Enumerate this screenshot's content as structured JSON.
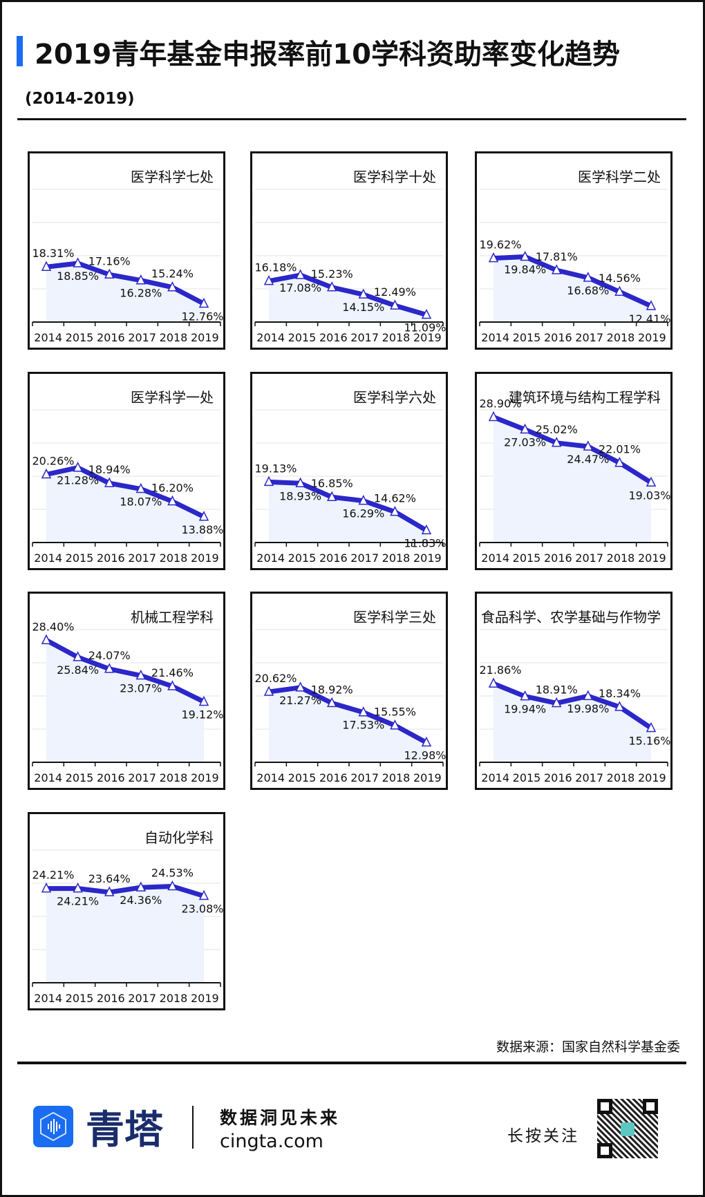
{
  "header": {
    "title": "2019青年基金申报率前10学科资助率变化趋势",
    "subtitle": "(2014-2019)",
    "accent": "#1a6cf0"
  },
  "chart_data": [
    {
      "type": "line",
      "title": "医学科学七处",
      "categories": [
        "2014",
        "2015",
        "2016",
        "2017",
        "2018",
        "2019"
      ],
      "values": [
        18.31,
        18.85,
        17.16,
        16.28,
        15.24,
        12.76
      ],
      "labels": [
        "18.31%",
        "18.85%",
        "17.16%",
        "16.28%",
        "15.24%",
        "12.76%"
      ],
      "ylim": [
        10,
        30
      ],
      "grid": true
    },
    {
      "type": "line",
      "title": "医学科学十处",
      "categories": [
        "2014",
        "2015",
        "2016",
        "2017",
        "2018",
        "2019"
      ],
      "values": [
        16.18,
        17.08,
        15.23,
        14.15,
        12.49,
        11.09
      ],
      "labels": [
        "16.18%",
        "17.08%",
        "15.23%",
        "14.15%",
        "12.49%",
        "11.09%"
      ],
      "ylim": [
        10,
        30
      ],
      "grid": true
    },
    {
      "type": "line",
      "title": "医学科学二处",
      "categories": [
        "2014",
        "2015",
        "2016",
        "2017",
        "2018",
        "2019"
      ],
      "values": [
        19.62,
        19.84,
        17.81,
        16.68,
        14.56,
        12.41
      ],
      "labels": [
        "19.62%",
        "19.84%",
        "17.81%",
        "16.68%",
        "14.56%",
        "12.41%"
      ],
      "ylim": [
        10,
        30
      ],
      "grid": true
    },
    {
      "type": "line",
      "title": "医学科学一处",
      "categories": [
        "2014",
        "2015",
        "2016",
        "2017",
        "2018",
        "2019"
      ],
      "values": [
        20.26,
        21.28,
        18.94,
        18.07,
        16.2,
        13.88
      ],
      "labels": [
        "20.26%",
        "21.28%",
        "18.94%",
        "18.07%",
        "16.20%",
        "13.88%"
      ],
      "ylim": [
        10,
        30
      ],
      "grid": true
    },
    {
      "type": "line",
      "title": "医学科学六处",
      "categories": [
        "2014",
        "2015",
        "2016",
        "2017",
        "2018",
        "2019"
      ],
      "values": [
        19.13,
        18.93,
        16.85,
        16.29,
        14.62,
        11.83
      ],
      "labels": [
        "19.13%",
        "18.93%",
        "16.85%",
        "16.29%",
        "14.62%",
        "11.83%"
      ],
      "ylim": [
        10,
        30
      ],
      "grid": true
    },
    {
      "type": "line",
      "title": "建筑环境与结构工程学科",
      "categories": [
        "2014",
        "2015",
        "2016",
        "2017",
        "2018",
        "2019"
      ],
      "values": [
        28.9,
        27.03,
        25.02,
        24.47,
        22.01,
        19.03
      ],
      "labels": [
        "28.90%",
        "27.03%",
        "25.02%",
        "24.47%",
        "22.01%",
        "19.03%"
      ],
      "ylim": [
        10,
        30
      ],
      "grid": true
    },
    {
      "type": "line",
      "title": "机械工程学科",
      "categories": [
        "2014",
        "2015",
        "2016",
        "2017",
        "2018",
        "2019"
      ],
      "values": [
        28.4,
        25.84,
        24.07,
        23.07,
        21.46,
        19.12
      ],
      "labels": [
        "28.40%",
        "25.84%",
        "24.07%",
        "23.07%",
        "21.46%",
        "19.12%"
      ],
      "ylim": [
        10,
        30
      ],
      "grid": true
    },
    {
      "type": "line",
      "title": "医学科学三处",
      "categories": [
        "2014",
        "2015",
        "2016",
        "2017",
        "2018",
        "2019"
      ],
      "values": [
        20.62,
        21.27,
        18.92,
        17.53,
        15.55,
        12.98
      ],
      "labels": [
        "20.62%",
        "21.27%",
        "18.92%",
        "17.53%",
        "15.55%",
        "12.98%"
      ],
      "ylim": [
        10,
        30
      ],
      "grid": true
    },
    {
      "type": "line",
      "title": "食品科学、农学基础与作物学",
      "categories": [
        "2014",
        "2015",
        "2016",
        "2017",
        "2018",
        "2019"
      ],
      "values": [
        21.86,
        19.94,
        18.91,
        19.98,
        18.34,
        15.16
      ],
      "labels": [
        "21.86%",
        "19.94%",
        "18.91%",
        "19.98%",
        "18.34%",
        "15.16%"
      ],
      "ylim": [
        10,
        30
      ],
      "grid": true
    },
    {
      "type": "line",
      "title": "自动化学科",
      "categories": [
        "2014",
        "2015",
        "2016",
        "2017",
        "2018",
        "2019"
      ],
      "values": [
        24.21,
        24.21,
        23.64,
        24.36,
        24.53,
        23.08
      ],
      "labels": [
        "24.21%",
        "24.21%",
        "23.64%",
        "24.36%",
        "24.53%",
        "23.08%"
      ],
      "ylim": [
        10,
        30
      ],
      "grid": true
    }
  ],
  "colors": {
    "line": "#2b27c8",
    "area": "#eef3fd",
    "grid": "#e3e3e3"
  },
  "footer": {
    "source": "数据来源：国家自然科学基金委",
    "brand": "青塔",
    "slogan": "数据洞见未来",
    "site": "cingta.com",
    "follow": "长按关注",
    "logo_icon": "sound-wave-hexagon-icon",
    "qr_icon": "qr-code-icon"
  }
}
